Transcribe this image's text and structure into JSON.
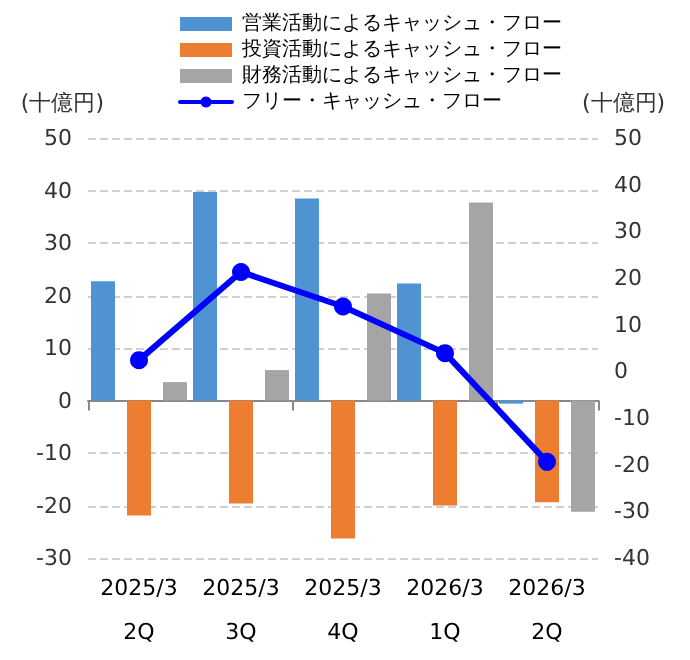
{
  "chart_data": {
    "type": "bar",
    "categories": [
      "2025/3\n2Q",
      "2025/3\n3Q",
      "2025/3\n4Q",
      "2026/3\n1Q",
      "2026/3\n2Q"
    ],
    "series": [
      {
        "name": "営業活動によるキャッシュ・フロー",
        "color": "#4f93d3",
        "values": [
          22.7,
          39.7,
          38.5,
          22.3,
          -0.6
        ]
      },
      {
        "name": "投資活動によるキャッシュ・フロー",
        "color": "#ed7d31",
        "values": [
          -21.9,
          -19.6,
          -26.3,
          -20,
          -19.4
        ]
      },
      {
        "name": "財務活動によるキャッシュ・フロー",
        "color": "#a5a5a5",
        "values": [
          3.5,
          5.8,
          20.4,
          37.7,
          -21.2
        ]
      },
      {
        "name": "フリー・キャッシュ・フロー",
        "type": "line",
        "axis": "y2",
        "color": "#0000ff",
        "values": [
          2.4,
          21.3,
          13.9,
          3.9,
          -19.4
        ]
      }
    ],
    "ylabel": "(十億円)",
    "y2label": "(十億円)",
    "ylim": [
      -30,
      50
    ],
    "yticks": [
      -30,
      -20,
      -10,
      0,
      10,
      20,
      30,
      40,
      50
    ],
    "y2lim": [
      -40,
      50
    ],
    "y2ticks": [
      -40,
      -30,
      -20,
      -10,
      0,
      10,
      20,
      30,
      40,
      50
    ],
    "grid": "y",
    "legend": "top",
    "marker": "circle",
    "line_style": "solid"
  }
}
